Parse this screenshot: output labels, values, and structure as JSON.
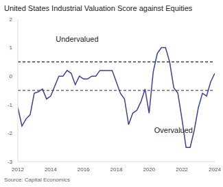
{
  "chart_data": {
    "type": "line",
    "title": "United States Industrial Valuation Score against Equities",
    "source": "Source: Capital Economics",
    "x": [
      2012,
      2012.25,
      2012.5,
      2012.75,
      2013,
      2013.25,
      2013.5,
      2013.75,
      2014,
      2014.25,
      2014.5,
      2014.75,
      2015,
      2015.25,
      2015.5,
      2015.75,
      2016,
      2016.25,
      2016.5,
      2016.75,
      2017,
      2017.25,
      2017.5,
      2017.75,
      2018,
      2018.25,
      2018.5,
      2018.75,
      2019,
      2019.25,
      2019.5,
      2019.75,
      2020,
      2020.25,
      2020.5,
      2020.75,
      2021,
      2021.25,
      2021.5,
      2021.75,
      2022,
      2022.25,
      2022.5,
      2022.75,
      2023,
      2023.25,
      2023.5,
      2023.75,
      2024
    ],
    "values": [
      -1.1,
      -1.75,
      -1.5,
      -1.35,
      -0.6,
      -0.55,
      -0.45,
      -0.8,
      -0.7,
      -0.35,
      0.0,
      0.0,
      0.2,
      0.1,
      -0.3,
      0.0,
      -0.1,
      -0.1,
      0.0,
      0.0,
      0.2,
      0.2,
      0.2,
      0.2,
      -0.2,
      -0.6,
      -0.8,
      -1.7,
      -1.3,
      -1.2,
      -0.9,
      -0.45,
      -1.3,
      0.15,
      0.8,
      1.0,
      1.0,
      0.5,
      -0.4,
      -0.6,
      -1.5,
      -2.5,
      -2.5,
      -1.9,
      -1.1,
      -0.6,
      -0.7,
      -0.2,
      0.1
    ],
    "color": "#3b3f9a",
    "xlim": [
      2012,
      2024
    ],
    "xticks": [
      2012,
      2014,
      2016,
      2018,
      2020,
      2022,
      2024
    ],
    "ylim": [
      -3,
      2
    ],
    "yticks": [
      -3,
      -2,
      -1,
      0,
      1,
      2
    ],
    "grid": false,
    "reference_lines": [
      0.5,
      -0.5
    ],
    "annotations": [
      {
        "text": "Undervalued",
        "x": 2014.1,
        "y": 1.3
      },
      {
        "text": "Overvalued",
        "x": 2020.1,
        "y": -1.9
      }
    ]
  }
}
